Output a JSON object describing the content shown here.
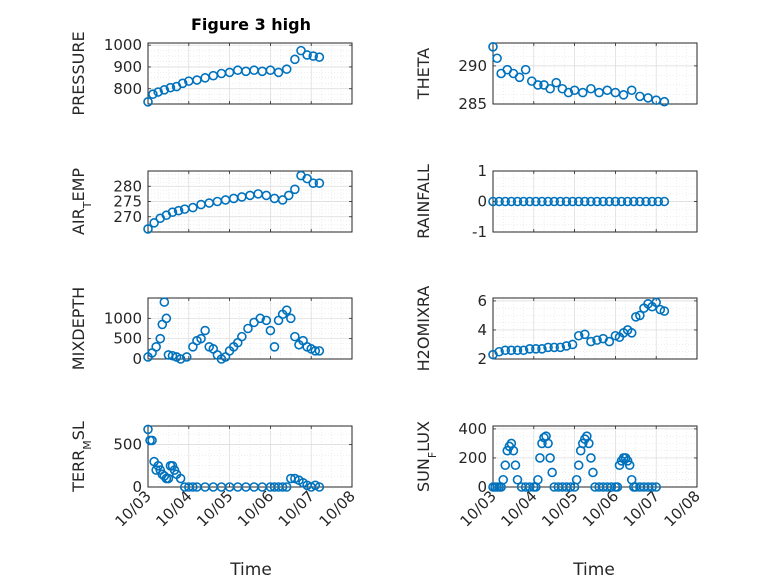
{
  "figure": {
    "title": "Figure 3 high",
    "marker_color": "#0072BD",
    "xlabel": "Time"
  },
  "chart_data": [
    {
      "type": "scatter",
      "id": "pressure",
      "ylabel": "PRESSURE",
      "ylim": [
        730,
        1010
      ],
      "yticks": [
        800,
        900,
        1000
      ],
      "xlim": [
        0,
        5
      ],
      "grid": true,
      "x": [
        0.0,
        0.12,
        0.25,
        0.4,
        0.55,
        0.7,
        0.85,
        1.0,
        1.2,
        1.4,
        1.6,
        1.8,
        2.0,
        2.2,
        2.4,
        2.6,
        2.8,
        3.0,
        3.2,
        3.4,
        3.6,
        3.75,
        3.9,
        4.05,
        4.2
      ],
      "y": [
        740,
        775,
        785,
        795,
        805,
        810,
        825,
        835,
        840,
        850,
        860,
        870,
        875,
        885,
        880,
        885,
        880,
        885,
        875,
        890,
        935,
        975,
        955,
        950,
        945
      ]
    },
    {
      "type": "scatter",
      "id": "theta",
      "ylabel": "THETA",
      "ylim": [
        285,
        293
      ],
      "yticks": [
        285,
        290
      ],
      "xlim": [
        0,
        5
      ],
      "grid": true,
      "x": [
        0.0,
        0.1,
        0.2,
        0.35,
        0.5,
        0.65,
        0.8,
        0.95,
        1.1,
        1.25,
        1.4,
        1.55,
        1.7,
        1.85,
        2.0,
        2.2,
        2.4,
        2.6,
        2.8,
        3.0,
        3.2,
        3.4,
        3.6,
        3.8,
        4.0,
        4.2
      ],
      "y": [
        292.5,
        291.0,
        289.0,
        289.5,
        289.0,
        288.5,
        289.5,
        288.0,
        287.5,
        287.5,
        287.0,
        287.8,
        287.0,
        286.5,
        286.8,
        286.5,
        287.0,
        286.5,
        286.8,
        286.5,
        286.2,
        286.8,
        286.0,
        285.8,
        285.5,
        285.3
      ]
    },
    {
      "type": "scatter",
      "id": "air_temp",
      "ylabel": "AIR",
      "ylabel_sub": "T",
      "ylabel_rest": "EMP",
      "ylim": [
        265,
        285
      ],
      "yticks": [
        270,
        275,
        280
      ],
      "xlim": [
        0,
        5
      ],
      "grid": true,
      "x": [
        0.0,
        0.15,
        0.3,
        0.45,
        0.6,
        0.75,
        0.9,
        1.1,
        1.3,
        1.5,
        1.7,
        1.9,
        2.1,
        2.3,
        2.5,
        2.7,
        2.9,
        3.1,
        3.3,
        3.45,
        3.6,
        3.75,
        3.9,
        4.05,
        4.2
      ],
      "y": [
        266,
        268,
        269.5,
        270.5,
        271.5,
        272.0,
        272.5,
        273.0,
        274.0,
        274.5,
        275.0,
        275.5,
        276.0,
        276.5,
        277.0,
        277.5,
        277.0,
        276.0,
        275.5,
        277.0,
        279.0,
        283.5,
        282.5,
        281.0,
        281.0
      ]
    },
    {
      "type": "scatter",
      "id": "rainfall",
      "ylabel": "RAINFALL",
      "ylim": [
        -1,
        1
      ],
      "yticks": [
        -1,
        0,
        1
      ],
      "xlim": [
        0,
        5
      ],
      "grid": true,
      "x": [
        0.0,
        0.15,
        0.3,
        0.45,
        0.6,
        0.75,
        0.9,
        1.05,
        1.2,
        1.35,
        1.5,
        1.65,
        1.8,
        1.95,
        2.1,
        2.25,
        2.4,
        2.55,
        2.7,
        2.85,
        3.0,
        3.15,
        3.3,
        3.45,
        3.6,
        3.75,
        3.9,
        4.05,
        4.2
      ],
      "y": [
        0,
        0,
        0,
        0,
        0,
        0,
        0,
        0,
        0,
        0,
        0,
        0,
        0,
        0,
        0,
        0,
        0,
        0,
        0,
        0,
        0,
        0,
        0,
        0,
        0,
        0,
        0,
        0,
        0
      ]
    },
    {
      "type": "scatter",
      "id": "mixdepth",
      "ylabel": "MIXDEPTH",
      "ylim": [
        0,
        1500
      ],
      "yticks": [
        0,
        500,
        1000
      ],
      "xlim": [
        0,
        5
      ],
      "grid": true,
      "x": [
        0.0,
        0.1,
        0.2,
        0.3,
        0.35,
        0.4,
        0.45,
        0.5,
        0.6,
        0.7,
        0.8,
        0.95,
        1.1,
        1.2,
        1.3,
        1.4,
        1.5,
        1.6,
        1.7,
        1.8,
        1.9,
        2.0,
        2.1,
        2.2,
        2.3,
        2.45,
        2.6,
        2.75,
        2.9,
        3.0,
        3.1,
        3.2,
        3.3,
        3.4,
        3.5,
        3.6,
        3.7,
        3.8,
        3.9,
        4.0,
        4.1,
        4.2
      ],
      "y": [
        50,
        150,
        300,
        500,
        850,
        1400,
        1000,
        100,
        80,
        50,
        0,
        50,
        300,
        450,
        500,
        700,
        300,
        250,
        100,
        0,
        50,
        200,
        300,
        400,
        550,
        750,
        900,
        1000,
        950,
        700,
        300,
        950,
        1100,
        1200,
        1000,
        550,
        350,
        450,
        300,
        250,
        200,
        200
      ]
    },
    {
      "type": "scatter",
      "id": "h2omixra",
      "ylabel": "H2OMIXRA",
      "ylim": [
        2,
        6.2
      ],
      "yticks": [
        2,
        4,
        6
      ],
      "xlim": [
        0,
        5
      ],
      "grid": true,
      "x": [
        0.0,
        0.15,
        0.3,
        0.45,
        0.6,
        0.75,
        0.9,
        1.05,
        1.2,
        1.35,
        1.5,
        1.65,
        1.8,
        1.95,
        2.1,
        2.25,
        2.4,
        2.55,
        2.7,
        2.85,
        3.0,
        3.1,
        3.2,
        3.3,
        3.4,
        3.5,
        3.6,
        3.7,
        3.8,
        3.9,
        4.0,
        4.1,
        4.2
      ],
      "y": [
        2.3,
        2.5,
        2.6,
        2.6,
        2.6,
        2.6,
        2.7,
        2.7,
        2.7,
        2.8,
        2.8,
        2.8,
        2.9,
        3.0,
        3.6,
        3.7,
        3.2,
        3.3,
        3.4,
        3.2,
        3.6,
        3.5,
        3.8,
        4.0,
        3.8,
        4.9,
        5.0,
        5.5,
        5.8,
        5.6,
        5.9,
        5.4,
        5.3
      ]
    },
    {
      "type": "scatter",
      "id": "terr_msl",
      "ylabel": "TERR",
      "ylabel_sub": "M",
      "ylabel_rest": "SL",
      "ylim": [
        0,
        720
      ],
      "yticks": [
        0,
        500
      ],
      "xlim": [
        0,
        5
      ],
      "grid": true,
      "xticklabels": [
        "10/03",
        "10/04",
        "10/05",
        "10/06",
        "10/07",
        "10/08"
      ],
      "x": [
        0.0,
        0.05,
        0.1,
        0.15,
        0.2,
        0.25,
        0.3,
        0.35,
        0.4,
        0.45,
        0.5,
        0.55,
        0.6,
        0.65,
        0.7,
        0.8,
        0.9,
        1.0,
        1.1,
        1.2,
        1.4,
        1.6,
        1.8,
        2.0,
        2.2,
        2.4,
        2.6,
        2.8,
        3.0,
        3.1,
        3.2,
        3.3,
        3.4,
        3.5,
        3.6,
        3.7,
        3.8,
        3.9,
        4.0,
        4.1,
        4.2
      ],
      "y": [
        680,
        550,
        550,
        300,
        200,
        250,
        200,
        150,
        130,
        100,
        100,
        250,
        250,
        200,
        150,
        100,
        0,
        0,
        0,
        0,
        0,
        0,
        0,
        0,
        0,
        0,
        0,
        0,
        0,
        0,
        0,
        0,
        0,
        100,
        100,
        80,
        50,
        20,
        0,
        20,
        0
      ]
    },
    {
      "type": "scatter",
      "id": "sun_flux",
      "ylabel": "SUN",
      "ylabel_sub": "F",
      "ylabel_rest": "LUX",
      "ylim": [
        0,
        420
      ],
      "yticks": [
        0,
        200,
        400
      ],
      "xlim": [
        0,
        5
      ],
      "grid": true,
      "xticklabels": [
        "10/03",
        "10/04",
        "10/05",
        "10/06",
        "10/07",
        "10/08"
      ],
      "x": [
        0.0,
        0.05,
        0.1,
        0.15,
        0.2,
        0.25,
        0.3,
        0.35,
        0.4,
        0.45,
        0.5,
        0.55,
        0.6,
        0.7,
        0.8,
        0.9,
        1.0,
        1.05,
        1.1,
        1.15,
        1.2,
        1.25,
        1.3,
        1.35,
        1.4,
        1.45,
        1.5,
        1.6,
        1.7,
        1.8,
        1.9,
        2.0,
        2.05,
        2.1,
        2.15,
        2.2,
        2.25,
        2.3,
        2.35,
        2.4,
        2.45,
        2.5,
        2.6,
        2.7,
        2.8,
        2.9,
        3.0,
        3.05,
        3.1,
        3.15,
        3.2,
        3.25,
        3.3,
        3.35,
        3.4,
        3.45,
        3.5,
        3.6,
        3.7,
        3.8,
        3.9,
        4.0
      ],
      "y": [
        0,
        0,
        0,
        0,
        0,
        50,
        150,
        250,
        280,
        300,
        250,
        150,
        50,
        0,
        0,
        0,
        0,
        0,
        50,
        200,
        300,
        340,
        350,
        300,
        200,
        100,
        0,
        0,
        0,
        0,
        0,
        0,
        50,
        150,
        250,
        300,
        330,
        350,
        300,
        200,
        100,
        0,
        0,
        0,
        0,
        0,
        0,
        0,
        150,
        180,
        200,
        200,
        180,
        150,
        50,
        0,
        0,
        0,
        0,
        0,
        0,
        0
      ]
    }
  ]
}
